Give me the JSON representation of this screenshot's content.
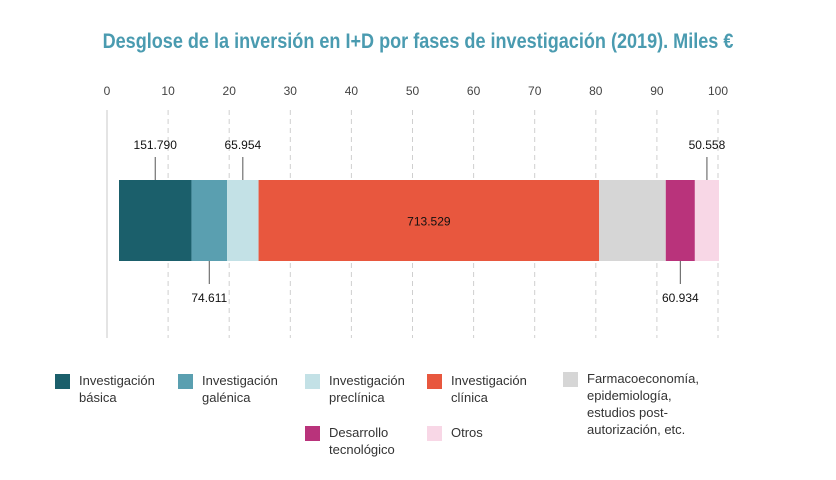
{
  "chart_data": {
    "type": "bar",
    "orientation": "horizontal-stacked-100",
    "title": "Desglose de la inversión en I+D por fases de investigación (2019). Miles €",
    "xlim": [
      0,
      100
    ],
    "xticks": [
      0,
      10,
      20,
      30,
      40,
      50,
      60,
      70,
      80,
      90,
      100
    ],
    "grid": true,
    "legend_position": "bottom",
    "series": [
      {
        "name": "Investigación\nbásica",
        "value": 151790,
        "label": "151.790",
        "color": "#1b5f6b",
        "label_side": "top"
      },
      {
        "name": "Investigación\ngalénica",
        "value": 74611,
        "label": "74.611",
        "color": "#5a9fb0",
        "label_side": "bottom"
      },
      {
        "name": "Investigación\npreclínica",
        "value": 65954,
        "label": "65.954",
        "color": "#c3e1e6",
        "label_side": "top"
      },
      {
        "name": "Investigación\nclínica",
        "value": 713529,
        "label": "713.529",
        "color": "#e8573e",
        "label_side": "inside"
      },
      {
        "name": "Farmacoeconomía,\nepidemiología,\nestudios post-autorización, etc.",
        "value": 139500,
        "label": "",
        "color": "#d6d6d6",
        "label_side": "none"
      },
      {
        "name": "Desarrollo\ntecnológico",
        "value": 60934,
        "label": "60.934",
        "color": "#b9337b",
        "label_side": "bottom"
      },
      {
        "name": "Otros",
        "value": 50558,
        "label": "50.558",
        "color": "#f8d7e6",
        "label_side": "top"
      }
    ]
  }
}
